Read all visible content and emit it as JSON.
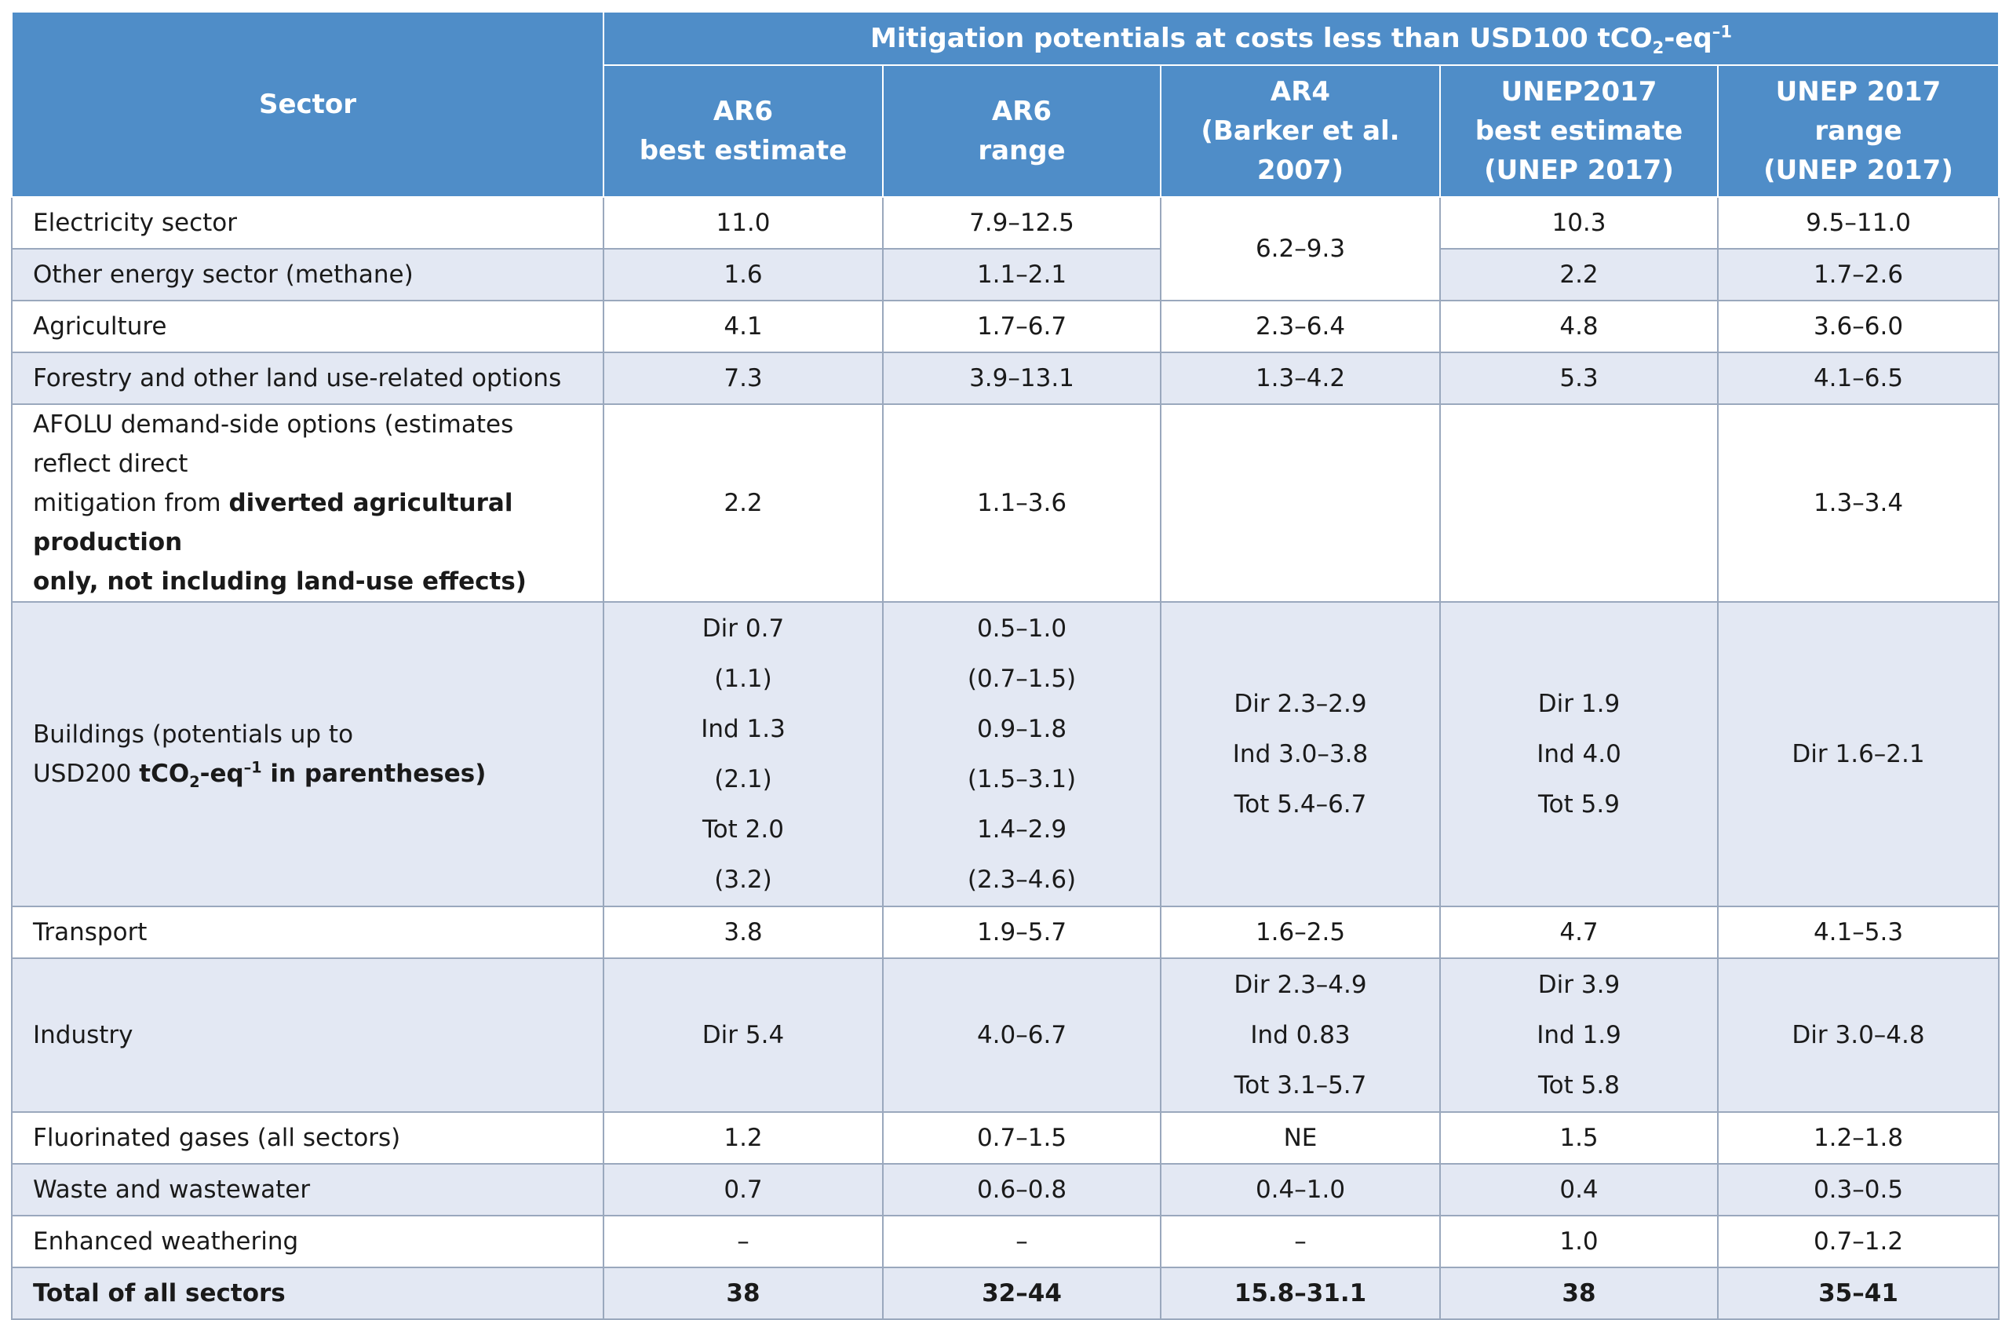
{
  "header": {
    "sector": "Sector",
    "group_title_main": "Mitigation potentials at costs less than USD100 tCO",
    "group_title_sub": "2",
    "group_title_mid": "-eq",
    "group_title_sup": "–1",
    "columns": [
      [
        "AR6",
        "best estimate"
      ],
      [
        "AR6",
        "range"
      ],
      [
        "AR4",
        "(Barker et al.",
        "2007)"
      ],
      [
        "UNEP2017",
        "best estimate",
        "(UNEP 2017)"
      ],
      [
        "UNEP 2017",
        "range",
        "(UNEP 2017)"
      ]
    ]
  },
  "rows": {
    "electricity": {
      "label": "Electricity sector",
      "ar6_best": "11.0",
      "ar6_range": "7.9–12.5",
      "ar4": "6.2–9.3",
      "unep_best": "10.3",
      "unep_range": "9.5–11.0"
    },
    "other_energy": {
      "label": "Other energy sector (methane)",
      "ar6_best": "1.6",
      "ar6_range": "1.1–2.1",
      "unep_best": "2.2",
      "unep_range": "1.7–2.6"
    },
    "agriculture": {
      "label": "Agriculture",
      "ar6_best": "4.1",
      "ar6_range": "1.7–6.7",
      "ar4": "2.3–6.4",
      "unep_best": "4.8",
      "unep_range": "3.6–6.0"
    },
    "forestry": {
      "label": "Forestry and other land use-related options",
      "ar6_best": "7.3",
      "ar6_range": "3.9–13.1",
      "ar4": "1.3–4.2",
      "unep_best": "5.3",
      "unep_range": "4.1–6.5"
    },
    "afolu": {
      "label_l1": "AFOLU demand-side options (estimates reflect direct",
      "label_l2a": "mitigation from ",
      "label_l2b": "diverted agricultural production",
      "label_l3": "only, not including land-use effects)",
      "ar6_best": "2.2",
      "ar6_range": "1.1–3.6",
      "ar4": "",
      "unep_best": "",
      "unep_range": "1.3–3.4"
    },
    "buildings": {
      "label_l1": "Buildings (potentials up to",
      "label_l2a": "USD200 ",
      "label_l2b": "tCO",
      "label_l2sub": "2",
      "label_l2c": "-eq",
      "label_l2sup": "–1",
      "label_l2d": " in parentheses)",
      "ar6_best": [
        "Dir 0.7",
        "(1.1)",
        "Ind 1.3",
        "(2.1)",
        "Tot 2.0",
        "(3.2)"
      ],
      "ar6_range": [
        "0.5–1.0",
        "(0.7–1.5)",
        "0.9–1.8",
        "(1.5–3.1)",
        "1.4–2.9",
        "(2.3–4.6)"
      ],
      "ar4": [
        "Dir 2.3–2.9",
        "Ind 3.0–3.8",
        "Tot 5.4–6.7"
      ],
      "unep_best": [
        "Dir 1.9",
        "Ind 4.0",
        "Tot 5.9"
      ],
      "unep_range": "Dir 1.6–2.1"
    },
    "transport": {
      "label": "Transport",
      "ar6_best": "3.8",
      "ar6_range": "1.9–5.7",
      "ar4": "1.6–2.5",
      "unep_best": "4.7",
      "unep_range": "4.1–5.3"
    },
    "industry": {
      "label": "Industry",
      "ar6_best": "Dir 5.4",
      "ar6_range": "4.0–6.7",
      "ar4": [
        "Dir 2.3–4.9",
        "Ind 0.83",
        "Tot 3.1–5.7"
      ],
      "unep_best": [
        "Dir 3.9",
        "Ind 1.9",
        "Tot 5.8"
      ],
      "unep_range": "Dir 3.0–4.8"
    },
    "fgas": {
      "label": "Fluorinated gases (all sectors)",
      "ar6_best": "1.2",
      "ar6_range": "0.7–1.5",
      "ar4": "NE",
      "unep_best": "1.5",
      "unep_range": "1.2–1.8"
    },
    "waste": {
      "label": "Waste and wastewater",
      "ar6_best": "0.7",
      "ar6_range": "0.6–0.8",
      "ar4": "0.4–1.0",
      "unep_best": "0.4",
      "unep_range": "0.3–0.5"
    },
    "weathering": {
      "label": "Enhanced weathering",
      "ar6_best": "–",
      "ar6_range": "–",
      "ar4": "–",
      "unep_best": "1.0",
      "unep_range": "0.7–1.2"
    },
    "total": {
      "label": "Total of all sectors",
      "ar6_best": "38",
      "ar6_range": "32–44",
      "ar4": "15.8–31.1",
      "unep_best": "38",
      "unep_range": "35–41"
    }
  }
}
